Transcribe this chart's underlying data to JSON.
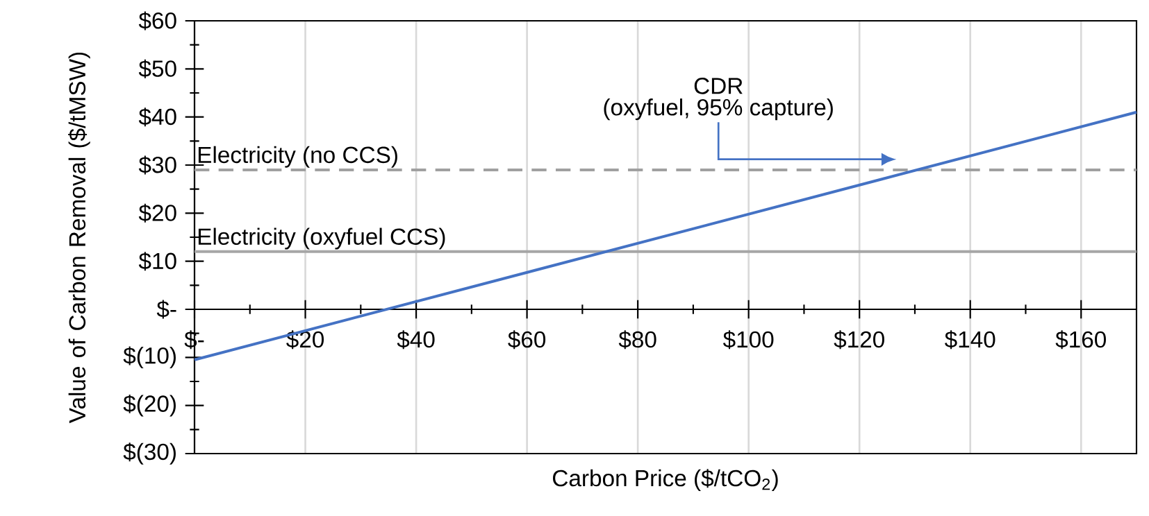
{
  "chart_data": {
    "type": "line",
    "xlabel": "Carbon Price ($/tCO$_{2}$)",
    "ylabel": "Value of Carbon Removal ($/tMSW)",
    "xlim": [
      0,
      170
    ],
    "ylim": [
      -30,
      60
    ],
    "xticks": [
      {
        "value": 0,
        "label": "$-"
      },
      {
        "value": 20,
        "label": "$20"
      },
      {
        "value": 40,
        "label": "$40"
      },
      {
        "value": 60,
        "label": "$60"
      },
      {
        "value": 80,
        "label": "$80"
      },
      {
        "value": 100,
        "label": "$100"
      },
      {
        "value": 120,
        "label": "$120"
      },
      {
        "value": 140,
        "label": "$140"
      },
      {
        "value": 160,
        "label": "$160"
      }
    ],
    "yticks": [
      {
        "value": -30,
        "label": "$(30)"
      },
      {
        "value": -20,
        "label": "$(20)"
      },
      {
        "value": -10,
        "label": "$(10)"
      },
      {
        "value": 0,
        "label": "$-"
      },
      {
        "value": 10,
        "label": "$10"
      },
      {
        "value": 20,
        "label": "$20"
      },
      {
        "value": 30,
        "label": "$30"
      },
      {
        "value": 40,
        "label": "$40"
      },
      {
        "value": 50,
        "label": "$50"
      },
      {
        "value": 60,
        "label": "$60"
      }
    ],
    "grid": "x",
    "marker": "none",
    "line_style": "solid",
    "series": [
      {
        "color": "#4472c4",
        "x": [
          0,
          170
        ],
        "values": [
          -10.5,
          41
        ]
      }
    ],
    "ref_lines": [
      {
        "axis": "y",
        "value": 29,
        "label": "Electricity (no CCS)",
        "color": "#a0a0a0",
        "line_style": "dashed"
      },
      {
        "axis": "y",
        "value": 12,
        "label": "Electricity (oxyfuel CCS)",
        "color": "#a6a6a6",
        "line_style": "solid"
      }
    ],
    "annotations": [
      "CDR",
      "(oxyfuel, 95% capture)"
    ]
  }
}
